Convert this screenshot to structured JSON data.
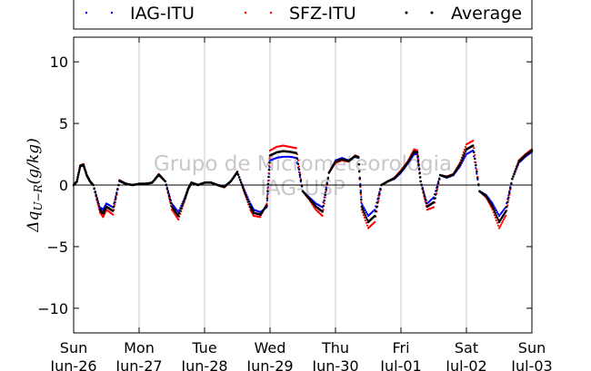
{
  "chart_data": {
    "type": "scatter",
    "ylabel": "Δq_{U−R}(g/kg)",
    "ylim": [
      -12,
      12
    ],
    "yticks": [
      -10,
      -5,
      0,
      5,
      10
    ],
    "xlim": [
      0,
      7
    ],
    "xticks": [
      {
        "day": "Sun",
        "date": "Jun-26"
      },
      {
        "day": "Mon",
        "date": "Jun-27"
      },
      {
        "day": "Tue",
        "date": "Jun-28"
      },
      {
        "day": "Wed",
        "date": "Jun-29"
      },
      {
        "day": "Thu",
        "date": "Jun-30"
      },
      {
        "day": "Fri",
        "date": "Jul-01"
      },
      {
        "day": "Sat",
        "date": "Jul-02"
      },
      {
        "day": "Sun",
        "date": "Jul-03"
      }
    ],
    "grid": "vertical",
    "legend_position": "top",
    "watermark": [
      "Grupo de Micrometeorologia",
      "IAG-USP"
    ],
    "series": [
      {
        "name": "IAG-ITU",
        "color": "#0000ff",
        "x": [
          0.0,
          0.05,
          0.1,
          0.15,
          0.2,
          0.25,
          0.3,
          0.4,
          0.45,
          0.5,
          0.6,
          0.7,
          0.8,
          0.9,
          1.0,
          1.1,
          1.2,
          1.3,
          1.4,
          1.5,
          1.6,
          1.7,
          1.75,
          1.8,
          1.9,
          2.0,
          2.1,
          2.2,
          2.3,
          2.4,
          2.5,
          2.6,
          2.7,
          2.75,
          2.85,
          2.95,
          3.0,
          3.1,
          3.2,
          3.3,
          3.4,
          3.5,
          3.6,
          3.7,
          3.8,
          3.9,
          4.0,
          4.1,
          4.2,
          4.3,
          4.35,
          4.4,
          4.5,
          4.6,
          4.7,
          4.8,
          4.9,
          5.0,
          5.1,
          5.2,
          5.25,
          5.3,
          5.4,
          5.5,
          5.6,
          5.7,
          5.8,
          5.9,
          6.0,
          6.1,
          6.2,
          6.3,
          6.4,
          6.5,
          6.6,
          6.7,
          6.8,
          6.9,
          7.0
        ],
        "y": [
          0.0,
          0.3,
          1.5,
          1.6,
          0.8,
          0.3,
          0.0,
          -1.8,
          -2.0,
          -1.5,
          -1.8,
          0.3,
          0.1,
          0.0,
          0.1,
          0.1,
          0.2,
          0.8,
          0.3,
          -1.5,
          -2.2,
          -1.0,
          -0.3,
          0.2,
          0.0,
          0.2,
          0.2,
          0.0,
          -0.1,
          0.3,
          1.0,
          -0.3,
          -1.5,
          -2.0,
          -2.2,
          -1.8,
          2.0,
          2.2,
          2.3,
          2.3,
          2.2,
          -0.5,
          -1.0,
          -1.5,
          -1.8,
          1.0,
          2.0,
          2.2,
          2.0,
          2.3,
          2.2,
          -1.5,
          -2.5,
          -2.0,
          0.0,
          0.3,
          0.5,
          1.0,
          1.7,
          2.5,
          2.5,
          0.3,
          -1.5,
          -1.0,
          0.8,
          0.6,
          0.8,
          1.5,
          2.5,
          2.8,
          -0.5,
          -0.8,
          -1.5,
          -2.5,
          -1.8,
          0.5,
          1.8,
          2.3,
          2.7
        ]
      },
      {
        "name": "SFZ-ITU",
        "color": "#ff0000",
        "x": [
          0.0,
          0.05,
          0.1,
          0.15,
          0.2,
          0.25,
          0.3,
          0.4,
          0.45,
          0.5,
          0.6,
          0.7,
          0.8,
          0.9,
          1.0,
          1.1,
          1.2,
          1.3,
          1.4,
          1.5,
          1.6,
          1.7,
          1.75,
          1.8,
          1.9,
          2.0,
          2.1,
          2.2,
          2.3,
          2.4,
          2.5,
          2.6,
          2.7,
          2.75,
          2.85,
          2.95,
          3.0,
          3.1,
          3.2,
          3.3,
          3.4,
          3.5,
          3.6,
          3.7,
          3.8,
          3.9,
          4.0,
          4.1,
          4.2,
          4.3,
          4.35,
          4.4,
          4.5,
          4.6,
          4.7,
          4.8,
          4.9,
          5.0,
          5.1,
          5.2,
          5.25,
          5.3,
          5.4,
          5.5,
          5.6,
          5.7,
          5.8,
          5.9,
          6.0,
          6.1,
          6.2,
          6.3,
          6.4,
          6.5,
          6.6,
          6.7,
          6.8,
          6.9,
          7.0
        ],
        "y": [
          0.0,
          0.3,
          1.6,
          1.7,
          0.8,
          0.3,
          0.0,
          -2.2,
          -2.6,
          -2.0,
          -2.4,
          0.4,
          0.1,
          0.0,
          0.1,
          0.1,
          0.2,
          0.9,
          0.3,
          -2.0,
          -2.8,
          -1.2,
          -0.3,
          0.2,
          0.0,
          0.2,
          0.2,
          0.0,
          -0.2,
          0.3,
          1.1,
          -0.5,
          -2.0,
          -2.5,
          -2.6,
          -1.5,
          2.8,
          3.1,
          3.2,
          3.1,
          3.0,
          -0.5,
          -1.2,
          -2.0,
          -2.5,
          1.0,
          1.8,
          2.0,
          1.9,
          2.4,
          2.3,
          -2.0,
          -3.5,
          -3.0,
          0.0,
          0.3,
          0.6,
          1.2,
          1.9,
          2.9,
          2.8,
          0.3,
          -2.0,
          -1.8,
          0.8,
          0.7,
          0.9,
          1.8,
          3.3,
          3.6,
          -0.5,
          -1.0,
          -2.0,
          -3.5,
          -2.5,
          0.5,
          2.0,
          2.5,
          2.9
        ]
      },
      {
        "name": "Average",
        "color": "#000000",
        "x": [
          0.0,
          0.05,
          0.1,
          0.15,
          0.2,
          0.25,
          0.3,
          0.4,
          0.45,
          0.5,
          0.6,
          0.7,
          0.8,
          0.9,
          1.0,
          1.1,
          1.2,
          1.3,
          1.4,
          1.5,
          1.6,
          1.7,
          1.75,
          1.8,
          1.9,
          2.0,
          2.1,
          2.2,
          2.3,
          2.4,
          2.5,
          2.6,
          2.7,
          2.75,
          2.85,
          2.95,
          3.0,
          3.1,
          3.2,
          3.3,
          3.4,
          3.5,
          3.6,
          3.7,
          3.8,
          3.9,
          4.0,
          4.1,
          4.2,
          4.3,
          4.35,
          4.4,
          4.5,
          4.6,
          4.7,
          4.8,
          4.9,
          5.0,
          5.1,
          5.2,
          5.25,
          5.3,
          5.4,
          5.5,
          5.6,
          5.7,
          5.8,
          5.9,
          6.0,
          6.1,
          6.2,
          6.3,
          6.4,
          6.5,
          6.6,
          6.7,
          6.8,
          6.9,
          7.0
        ],
        "y": [
          0.0,
          0.3,
          1.55,
          1.65,
          0.8,
          0.3,
          0.0,
          -2.0,
          -2.3,
          -1.75,
          -2.1,
          0.35,
          0.1,
          0.0,
          0.1,
          0.1,
          0.2,
          0.85,
          0.3,
          -1.75,
          -2.5,
          -1.1,
          -0.3,
          0.2,
          0.0,
          0.2,
          0.2,
          0.0,
          -0.15,
          0.3,
          1.05,
          -0.4,
          -1.75,
          -2.25,
          -2.4,
          -1.65,
          2.4,
          2.65,
          2.75,
          2.7,
          2.6,
          -0.5,
          -1.1,
          -1.75,
          -2.15,
          1.0,
          1.9,
          2.1,
          1.95,
          2.35,
          2.25,
          -1.75,
          -3.0,
          -2.5,
          0.0,
          0.3,
          0.55,
          1.1,
          1.8,
          2.7,
          2.65,
          0.3,
          -1.75,
          -1.4,
          0.8,
          0.65,
          0.85,
          1.65,
          2.9,
          3.2,
          -0.5,
          -0.9,
          -1.75,
          -3.0,
          -2.15,
          0.5,
          1.9,
          2.4,
          2.8
        ]
      }
    ]
  }
}
